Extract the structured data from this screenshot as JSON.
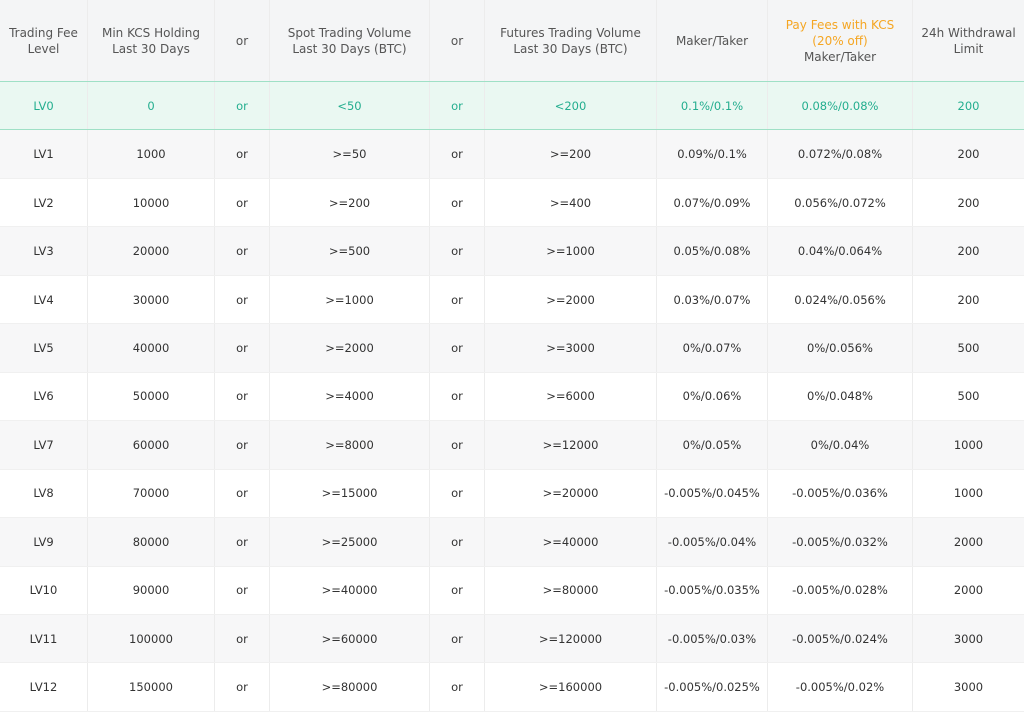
{
  "table": {
    "header": [
      "Trading Fee Level",
      "Min KCS Holding Last 30 Days",
      "or",
      "Spot Trading Volume Last 30 Days (BTC)",
      "or",
      "Futures Trading Volume Last 30 Days (BTC)",
      "Maker/Taker",
      {
        "note": "Pay Fees with KCS (20% off)",
        "label": "Maker/Taker"
      },
      "24h Withdrawal Limit"
    ],
    "rows": [
      [
        "LV0",
        "0",
        "or",
        "<50",
        "or",
        "<200",
        "0.1%/0.1%",
        "0.08%/0.08%",
        "200"
      ],
      [
        "LV1",
        "1000",
        "or",
        ">=50",
        "or",
        ">=200",
        "0.09%/0.1%",
        "0.072%/0.08%",
        "200"
      ],
      [
        "LV2",
        "10000",
        "or",
        ">=200",
        "or",
        ">=400",
        "0.07%/0.09%",
        "0.056%/0.072%",
        "200"
      ],
      [
        "LV3",
        "20000",
        "or",
        ">=500",
        "or",
        ">=1000",
        "0.05%/0.08%",
        "0.04%/0.064%",
        "200"
      ],
      [
        "LV4",
        "30000",
        "or",
        ">=1000",
        "or",
        ">=2000",
        "0.03%/0.07%",
        "0.024%/0.056%",
        "200"
      ],
      [
        "LV5",
        "40000",
        "or",
        ">=2000",
        "or",
        ">=3000",
        "0%/0.07%",
        "0%/0.056%",
        "500"
      ],
      [
        "LV6",
        "50000",
        "or",
        ">=4000",
        "or",
        ">=6000",
        "0%/0.06%",
        "0%/0.048%",
        "500"
      ],
      [
        "LV7",
        "60000",
        "or",
        ">=8000",
        "or",
        ">=12000",
        "0%/0.05%",
        "0%/0.04%",
        "1000"
      ],
      [
        "LV8",
        "70000",
        "or",
        ">=15000",
        "or",
        ">=20000",
        "-0.005%/0.045%",
        "-0.005%/0.036%",
        "1000"
      ],
      [
        "LV9",
        "80000",
        "or",
        ">=25000",
        "or",
        ">=40000",
        "-0.005%/0.04%",
        "-0.005%/0.032%",
        "2000"
      ],
      [
        "LV10",
        "90000",
        "or",
        ">=40000",
        "or",
        ">=80000",
        "-0.005%/0.035%",
        "-0.005%/0.028%",
        "2000"
      ],
      [
        "LV11",
        "100000",
        "or",
        ">=60000",
        "or",
        ">=120000",
        "-0.005%/0.03%",
        "-0.005%/0.024%",
        "3000"
      ],
      [
        "LV12",
        "150000",
        "or",
        ">=80000",
        "or",
        ">=160000",
        "-0.005%/0.025%",
        "-0.005%/0.02%",
        "3000"
      ]
    ]
  }
}
